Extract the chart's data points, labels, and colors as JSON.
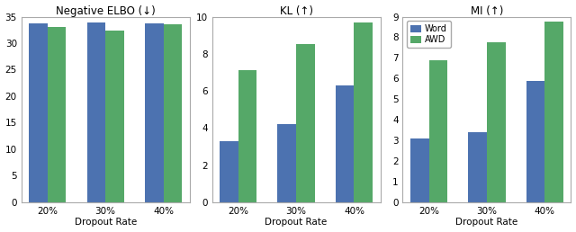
{
  "categories": [
    "20%",
    "30%",
    "40%"
  ],
  "charts": [
    {
      "title": "Negative ELBO (↓)",
      "word_values": [
        33.7,
        33.9,
        33.7
      ],
      "awd_values": [
        33.1,
        32.4,
        33.5
      ],
      "ylim": [
        0,
        35
      ],
      "yticks": [
        0,
        5,
        10,
        15,
        20,
        25,
        30,
        35
      ]
    },
    {
      "title": "KL (↑)",
      "word_values": [
        3.3,
        4.2,
        6.3
      ],
      "awd_values": [
        7.1,
        8.5,
        9.7
      ],
      "ylim": [
        0,
        10
      ],
      "yticks": [
        0,
        2,
        4,
        6,
        8,
        10
      ]
    },
    {
      "title": "MI (↑)",
      "word_values": [
        3.1,
        3.4,
        5.9
      ],
      "awd_values": [
        6.9,
        7.75,
        8.75
      ],
      "ylim": [
        0,
        9
      ],
      "yticks": [
        0,
        1,
        2,
        3,
        4,
        5,
        6,
        7,
        8,
        9
      ]
    }
  ],
  "word_color": "#4C72B0",
  "awd_color": "#55A868",
  "xlabel": "Dropout Rate",
  "legend_labels": [
    "Word",
    "AWD"
  ],
  "bar_width": 0.32,
  "figure_facecolor": "#ffffff",
  "axes_facecolor": "#ffffff"
}
